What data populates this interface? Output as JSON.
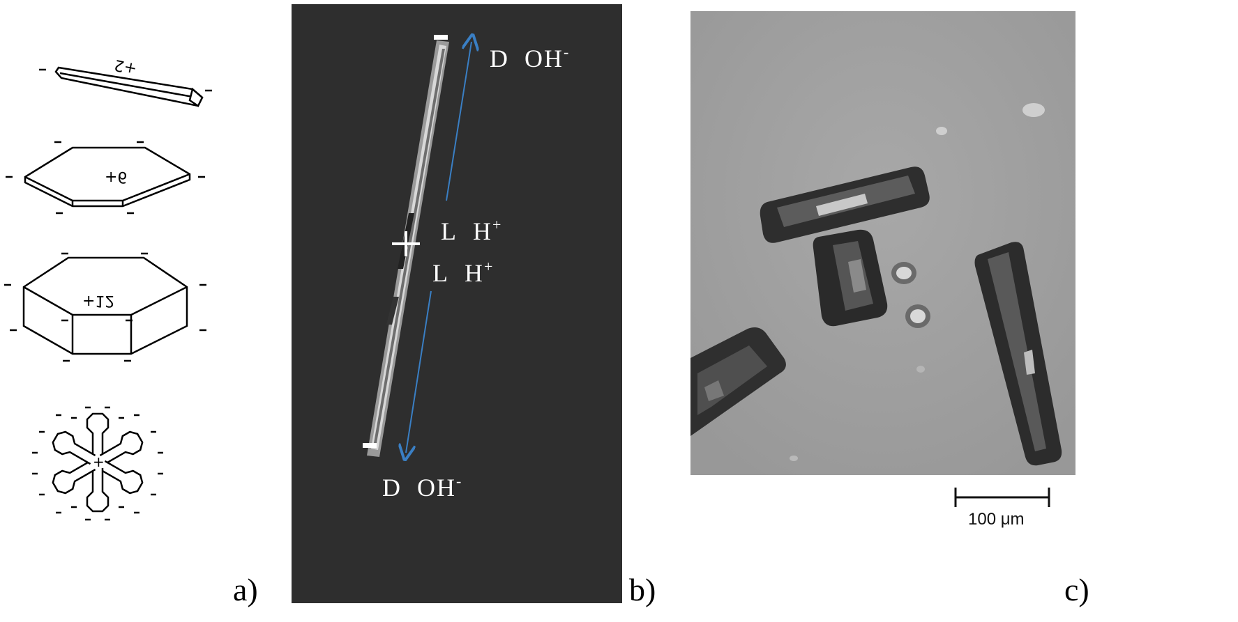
{
  "panel_a": {
    "label": "a)",
    "shapes": [
      {
        "name": "rod",
        "charge": "+2"
      },
      {
        "name": "plate",
        "charge": "+6"
      },
      {
        "name": "prism",
        "charge": "+12"
      },
      {
        "name": "dendrite",
        "charge": "+"
      }
    ],
    "edge_sign": "–"
  },
  "panel_b": {
    "label": "b)",
    "top_text": {
      "letter": "D",
      "ion": "OH",
      "sup": "-"
    },
    "mid_text_1": {
      "letter": "L",
      "ion": "H",
      "sup": "+"
    },
    "mid_text_2": {
      "letter": "L",
      "ion": "H",
      "sup": "+"
    },
    "bottom_text": {
      "letter": "D",
      "ion": "OH",
      "sup": "-"
    },
    "arrow_color": "#3a7fc4"
  },
  "panel_c": {
    "label": "c)",
    "scale_label": "100 μm"
  }
}
